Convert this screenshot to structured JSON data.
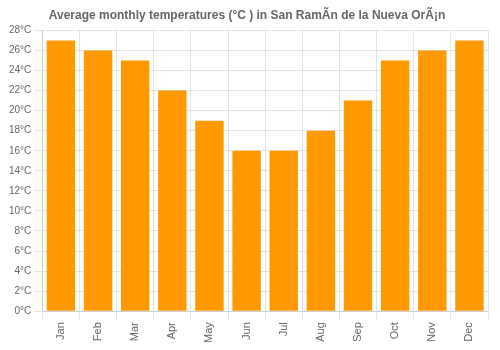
{
  "chart_data": {
    "type": "bar",
    "title": "Average monthly temperatures (°C ) in San RamÃ­n de la Nueva OrÃ¡n",
    "categories": [
      "Jan",
      "Feb",
      "Mar",
      "Apr",
      "May",
      "Jun",
      "Jul",
      "Aug",
      "Sep",
      "Oct",
      "Nov",
      "Dec"
    ],
    "values": [
      27.0,
      26.0,
      25.0,
      22.0,
      19.0,
      16.0,
      16.0,
      18.0,
      21.0,
      25.0,
      26.0,
      27.0
    ],
    "color": "#FF9900",
    "ylim": [
      0,
      28
    ],
    "yticks": [
      {
        "value": 0,
        "label": "0°C"
      },
      {
        "value": 2,
        "label": "2°C"
      },
      {
        "value": 4,
        "label": "4°C"
      },
      {
        "value": 6,
        "label": "6°C"
      },
      {
        "value": 8,
        "label": "8°C"
      },
      {
        "value": 10,
        "label": "10°C"
      },
      {
        "value": 12,
        "label": "12°C"
      },
      {
        "value": 14,
        "label": "14°C"
      },
      {
        "value": 16,
        "label": "16°C"
      },
      {
        "value": 18,
        "label": "18°C"
      },
      {
        "value": 20,
        "label": "20°C"
      },
      {
        "value": 22,
        "label": "22°C"
      },
      {
        "value": 24,
        "label": "24°C"
      },
      {
        "value": 26,
        "label": "26°C"
      },
      {
        "value": 28,
        "label": "28°C"
      }
    ],
    "grid": true
  }
}
